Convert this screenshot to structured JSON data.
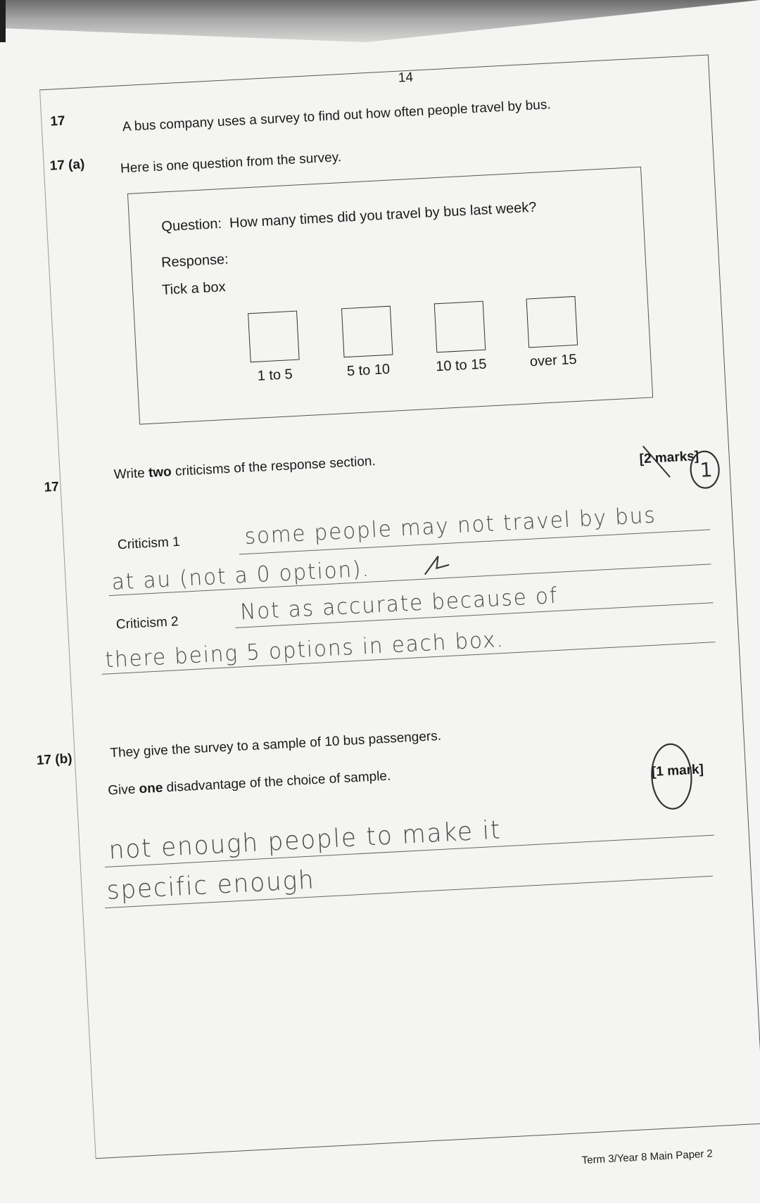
{
  "page_number": "14",
  "question": {
    "number": "17",
    "intro": "A bus company uses a survey to find out how often people travel by bus.",
    "part_a": {
      "label": "17 (a)",
      "lead": "Here is one question from the survey.",
      "survey_box": {
        "question_label": "Question:",
        "question_text": "How many times did you travel by bus last week?",
        "response_label": "Response:",
        "instruction": "Tick a box",
        "options": [
          "1 to 5",
          "5 to 10",
          "10 to 15",
          "over 15"
        ]
      },
      "sub_number": "17",
      "prompt_pre": "Write ",
      "prompt_bold": "two",
      "prompt_post": " criticisms of the response section.",
      "marks": "[2 marks]",
      "criticism1_label": "Criticism 1",
      "criticism2_label": "Criticism 2",
      "answers": {
        "c1_line1": "some people may not travel by bus",
        "c1_line2": "at au (not a 0 option).",
        "c2_line1": "Not as accurate because of",
        "c2_line2": "there being 5 options in each box."
      },
      "teacher_mark": "1"
    },
    "part_b": {
      "label": "17 (b)",
      "statement": "They give the survey to a sample of 10 bus passengers.",
      "prompt_pre": "Give ",
      "prompt_bold": "one",
      "prompt_post": " disadvantage of the choice of sample.",
      "marks": "[1 mark]",
      "answers": {
        "line1": "not enough people to make it",
        "line2": "specific enough"
      }
    }
  },
  "footer": "Term 3/Year 8 Main Paper 2",
  "colors": {
    "ink": "#1a1a1a",
    "pencil": "#4a4a4a",
    "paper": "#f4f4f2"
  }
}
